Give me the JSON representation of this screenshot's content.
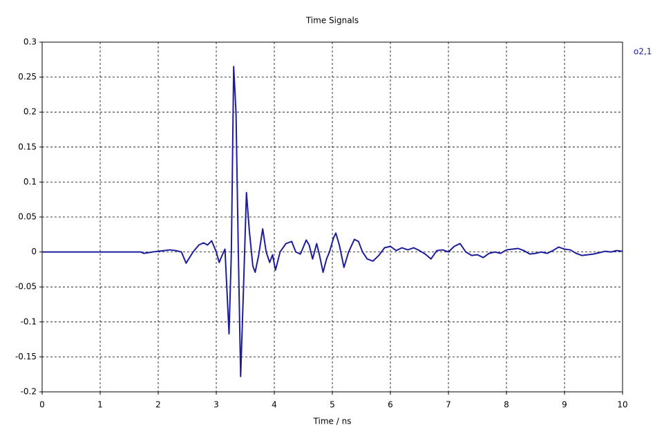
{
  "chart_data": {
    "type": "line",
    "title": "Time Signals",
    "x_label": "Time / ns",
    "xlim": [
      0,
      10
    ],
    "ylim": [
      -0.2,
      0.3
    ],
    "xticks": [
      0,
      1,
      2,
      3,
      4,
      5,
      6,
      7,
      8,
      9,
      10
    ],
    "yticks": [
      0.3,
      0.25,
      0.2,
      0.15,
      0.1,
      0.05,
      0,
      -0.05,
      -0.1,
      -0.15,
      -0.2
    ],
    "grid": true,
    "legend": "top-right",
    "x": [
      0,
      1,
      1.7,
      1.75,
      1.9,
      2.0,
      2.1,
      2.2,
      2.3,
      2.4,
      2.48,
      2.6,
      2.7,
      2.78,
      2.85,
      2.92,
      3.0,
      3.05,
      3.1,
      3.15,
      3.22,
      3.26,
      3.3,
      3.34,
      3.38,
      3.42,
      3.47,
      3.52,
      3.57,
      3.63,
      3.67,
      3.73,
      3.8,
      3.86,
      3.92,
      3.97,
      4.02,
      4.1,
      4.2,
      4.3,
      4.37,
      4.45,
      4.55,
      4.6,
      4.66,
      4.73,
      4.78,
      4.84,
      4.9,
      4.95,
      5.02,
      5.06,
      5.12,
      5.2,
      5.28,
      5.38,
      5.45,
      5.52,
      5.6,
      5.7,
      5.8,
      5.9,
      6.0,
      6.1,
      6.2,
      6.3,
      6.4,
      6.5,
      6.6,
      6.7,
      6.8,
      6.9,
      7.0,
      7.1,
      7.2,
      7.3,
      7.4,
      7.5,
      7.6,
      7.7,
      7.8,
      7.9,
      8.0,
      8.1,
      8.2,
      8.3,
      8.4,
      8.5,
      8.6,
      8.7,
      8.8,
      8.9,
      9.0,
      9.1,
      9.2,
      9.3,
      9.4,
      9.5,
      9.6,
      9.7,
      9.8,
      9.9,
      10
    ],
    "series": [
      {
        "name": "o2,1",
        "color": "#1c1c9c",
        "values": [
          0,
          0,
          0,
          -0.002,
          0.0,
          0.001,
          0.002,
          0.003,
          0.002,
          0.0,
          -0.016,
          0.0,
          0.01,
          0.013,
          0.01,
          0.016,
          0.0,
          -0.015,
          -0.005,
          0.004,
          -0.117,
          0.0,
          0.265,
          0.2,
          0.0,
          -0.178,
          -0.05,
          0.085,
          0.03,
          -0.02,
          -0.029,
          -0.005,
          0.033,
          0.0,
          -0.015,
          -0.004,
          -0.026,
          0.0,
          0.012,
          0.015,
          0.0,
          -0.003,
          0.017,
          0.01,
          -0.01,
          0.012,
          -0.005,
          -0.029,
          -0.01,
          0.0,
          0.02,
          0.027,
          0.01,
          -0.022,
          0.0,
          0.018,
          0.015,
          0.0,
          -0.01,
          -0.013,
          -0.005,
          0.006,
          0.008,
          0.002,
          0.006,
          0.003,
          0.006,
          0.002,
          -0.003,
          -0.01,
          0.002,
          0.003,
          0.0,
          0.008,
          0.012,
          0.0,
          -0.005,
          -0.004,
          -0.008,
          -0.002,
          0.0,
          -0.002,
          0.003,
          0.004,
          0.005,
          0.002,
          -0.003,
          -0.002,
          0.0,
          -0.002,
          0.002,
          0.007,
          0.004,
          0.003,
          -0.002,
          -0.005,
          -0.004,
          -0.003,
          -0.001,
          0.001,
          0.0,
          0.002,
          0.001
        ]
      }
    ]
  }
}
